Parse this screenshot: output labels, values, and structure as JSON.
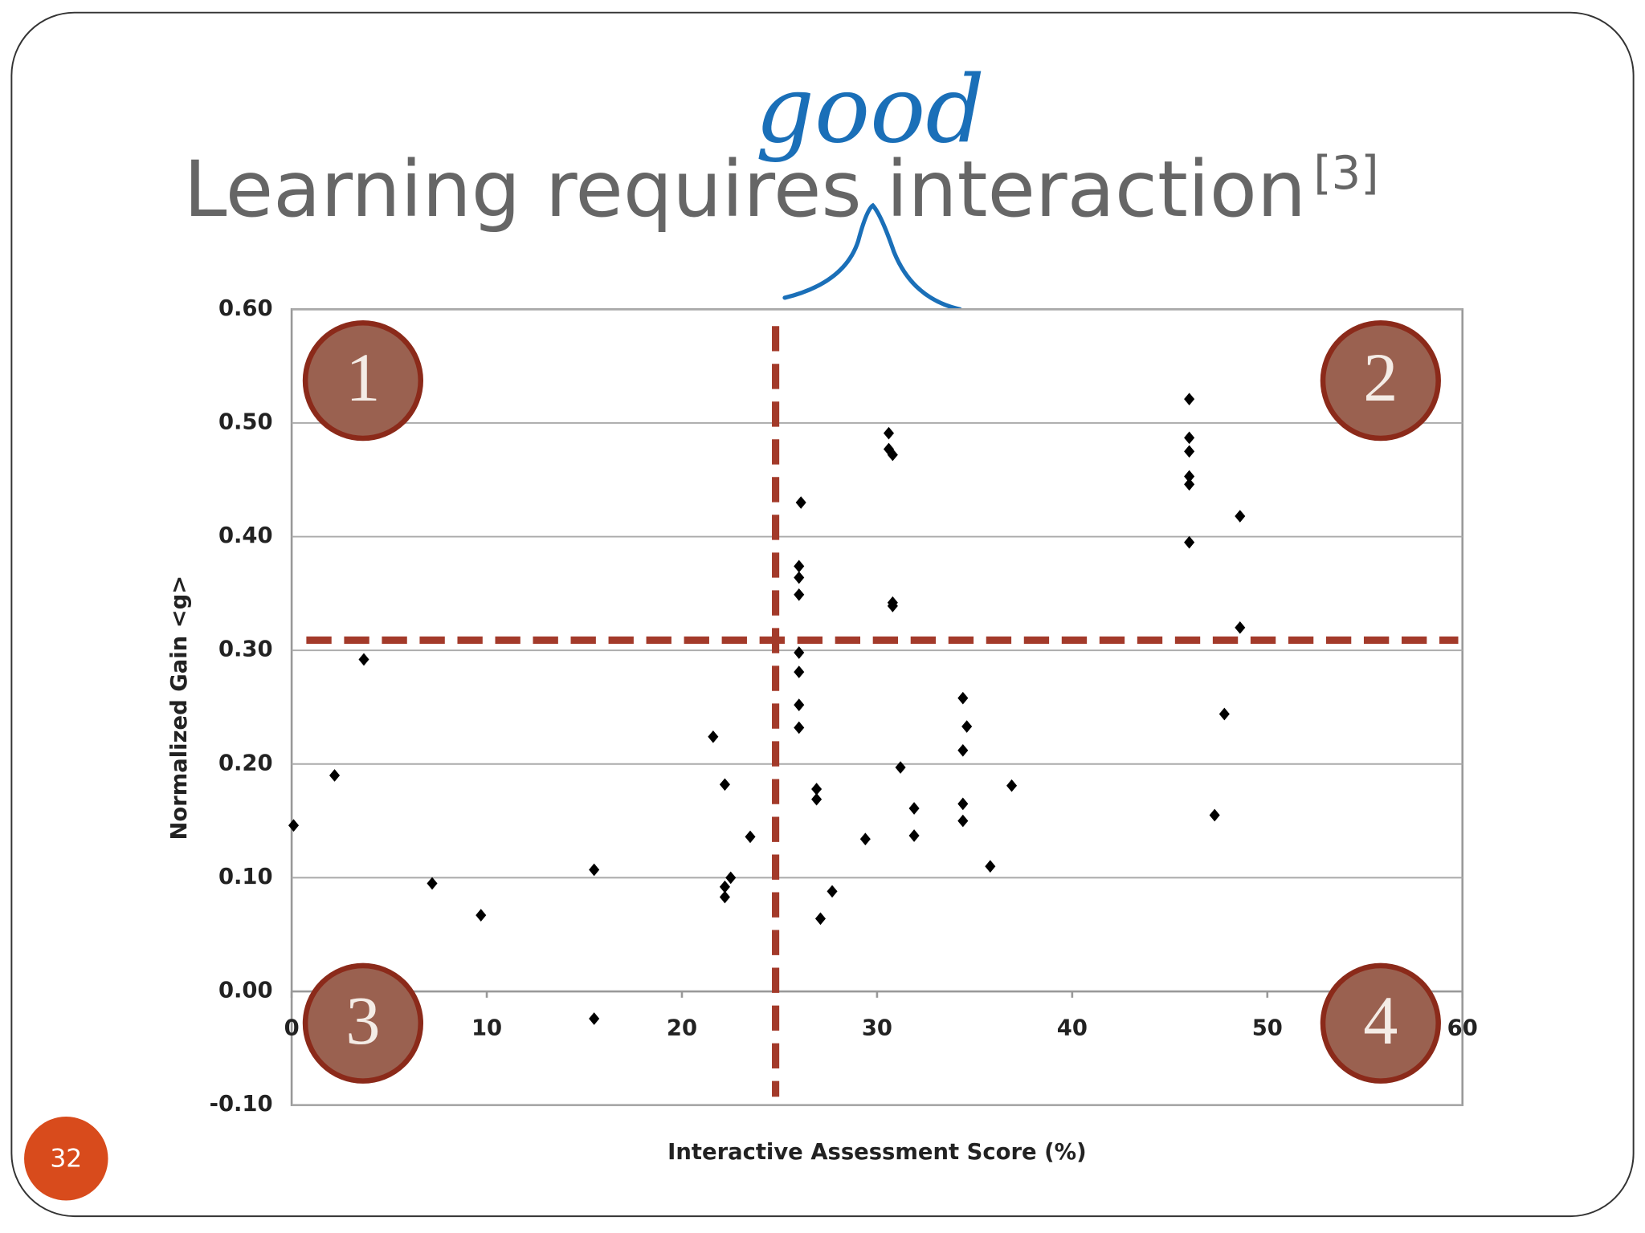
{
  "chart_data": {
    "type": "scatter",
    "title": "Learning requires interaction",
    "title_reference": "[3]",
    "title_annotation": "good",
    "page_number": "32",
    "quadrant_labels": [
      "1",
      "2",
      "3",
      "4"
    ],
    "xlabel": "Interactive Assessment Score (%)",
    "ylabel": "Normalized Gain <g>",
    "xlim": [
      0,
      60
    ],
    "xticks": [
      0,
      10,
      20,
      30,
      40,
      50,
      60
    ],
    "ylim": [
      -0.1,
      0.6
    ],
    "yticks": [
      {
        "value": -0.1,
        "label": "-0.10"
      },
      {
        "value": 0,
        "label": "0.00"
      },
      {
        "value": 0.1,
        "label": "0.10"
      },
      {
        "value": 0.2,
        "label": "0.20"
      },
      {
        "value": 0.3,
        "label": "0.30"
      },
      {
        "value": 0.4,
        "label": "0.40"
      },
      {
        "value": 0.5,
        "label": "0.50"
      },
      {
        "value": 0.6,
        "label": "0.60"
      }
    ],
    "grid": true,
    "color": "#000000",
    "reference_color": "#a33a2a",
    "reference_lines": [
      {
        "axis": "x",
        "value": 24.8
      },
      {
        "axis": "y",
        "value": 0.309
      }
    ],
    "x": [
      0.1,
      2.2,
      3.7,
      7.2,
      9.7,
      15.5,
      15.5,
      21.6,
      22.2,
      22.2,
      22.2,
      22.5,
      23.5,
      26.1,
      26.0,
      26.0,
      26.0,
      26.0,
      26.0,
      26.0,
      26.0,
      26.9,
      26.9,
      27.1,
      27.7,
      29.4,
      30.6,
      30.6,
      30.8,
      30.8,
      30.8,
      31.2,
      31.9,
      31.9,
      34.4,
      34.6,
      34.4,
      34.4,
      34.4,
      35.8,
      36.9,
      46.0,
      46.0,
      46.0,
      46.0,
      46.0,
      46.0,
      47.3,
      47.8,
      48.6,
      48.6
    ],
    "values": [
      0.146,
      0.19,
      0.292,
      0.095,
      0.067,
      0.107,
      -0.024,
      0.224,
      0.182,
      0.092,
      0.083,
      0.1,
      0.136,
      0.43,
      0.374,
      0.364,
      0.349,
      0.298,
      0.281,
      0.252,
      0.232,
      0.178,
      0.169,
      0.064,
      0.088,
      0.134,
      0.491,
      0.477,
      0.472,
      0.342,
      0.339,
      0.197,
      0.161,
      0.137,
      0.258,
      0.233,
      0.212,
      0.165,
      0.15,
      0.11,
      0.181,
      0.521,
      0.487,
      0.475,
      0.453,
      0.446,
      0.395,
      0.155,
      0.244,
      0.418,
      0.32
    ]
  }
}
